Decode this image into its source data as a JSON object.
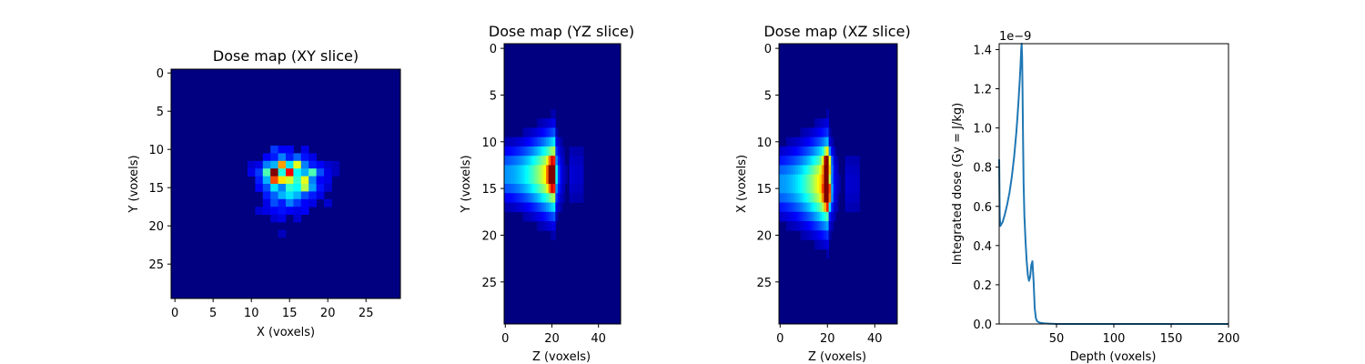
{
  "chart_data": [
    {
      "type": "heatmap",
      "title": "Dose map (XY slice)",
      "xlabel": "X (voxels)",
      "ylabel": "Y (voxels)",
      "xlim": [
        -0.5,
        29.5
      ],
      "ylim": [
        29.5,
        -0.5
      ],
      "x_ticks": [
        0,
        5,
        10,
        15,
        20,
        25
      ],
      "y_ticks": [
        0,
        5,
        10,
        15,
        20,
        25
      ],
      "grid_shape": [
        30,
        30
      ],
      "colormap": "jet",
      "cells": [
        {
          "x": 13,
          "y": 10,
          "v": 0.18
        },
        {
          "x": 14,
          "y": 10,
          "v": 0.12
        },
        {
          "x": 15,
          "y": 10,
          "v": 0.12
        },
        {
          "x": 17,
          "y": 10,
          "v": 0.1
        },
        {
          "x": 12,
          "y": 11,
          "v": 0.12
        },
        {
          "x": 13,
          "y": 11,
          "v": 0.15
        },
        {
          "x": 14,
          "y": 11,
          "v": 0.25
        },
        {
          "x": 15,
          "y": 11,
          "v": 0.15
        },
        {
          "x": 16,
          "y": 11,
          "v": 0.22
        },
        {
          "x": 17,
          "y": 11,
          "v": 0.14
        },
        {
          "x": 18,
          "y": 11,
          "v": 0.1
        },
        {
          "x": 10,
          "y": 12,
          "v": 0.08
        },
        {
          "x": 11,
          "y": 12,
          "v": 0.1
        },
        {
          "x": 12,
          "y": 12,
          "v": 0.25
        },
        {
          "x": 13,
          "y": 12,
          "v": 0.3
        },
        {
          "x": 14,
          "y": 12,
          "v": 0.72
        },
        {
          "x": 15,
          "y": 12,
          "v": 0.35
        },
        {
          "x": 16,
          "y": 12,
          "v": 0.6
        },
        {
          "x": 17,
          "y": 12,
          "v": 0.25
        },
        {
          "x": 18,
          "y": 12,
          "v": 0.15
        },
        {
          "x": 19,
          "y": 12,
          "v": 0.12
        },
        {
          "x": 20,
          "y": 12,
          "v": 0.08
        },
        {
          "x": 21,
          "y": 12,
          "v": 0.06
        },
        {
          "x": 10,
          "y": 13,
          "v": 0.1
        },
        {
          "x": 11,
          "y": 13,
          "v": 0.18
        },
        {
          "x": 12,
          "y": 13,
          "v": 0.45
        },
        {
          "x": 13,
          "y": 13,
          "v": 1.0
        },
        {
          "x": 14,
          "y": 13,
          "v": 0.4
        },
        {
          "x": 15,
          "y": 13,
          "v": 0.88
        },
        {
          "x": 16,
          "y": 13,
          "v": 0.38
        },
        {
          "x": 17,
          "y": 13,
          "v": 0.3
        },
        {
          "x": 18,
          "y": 13,
          "v": 0.45
        },
        {
          "x": 19,
          "y": 13,
          "v": 0.2
        },
        {
          "x": 20,
          "y": 13,
          "v": 0.1
        },
        {
          "x": 21,
          "y": 13,
          "v": 0.06
        },
        {
          "x": 11,
          "y": 14,
          "v": 0.15
        },
        {
          "x": 12,
          "y": 14,
          "v": 0.3
        },
        {
          "x": 13,
          "y": 14,
          "v": 0.8
        },
        {
          "x": 14,
          "y": 14,
          "v": 0.65
        },
        {
          "x": 15,
          "y": 14,
          "v": 0.58
        },
        {
          "x": 16,
          "y": 14,
          "v": 0.42
        },
        {
          "x": 17,
          "y": 14,
          "v": 0.6
        },
        {
          "x": 18,
          "y": 14,
          "v": 0.25
        },
        {
          "x": 19,
          "y": 14,
          "v": 0.12
        },
        {
          "x": 20,
          "y": 14,
          "v": 0.1
        },
        {
          "x": 11,
          "y": 15,
          "v": 0.12
        },
        {
          "x": 12,
          "y": 15,
          "v": 0.2
        },
        {
          "x": 13,
          "y": 15,
          "v": 0.35
        },
        {
          "x": 14,
          "y": 15,
          "v": 0.25
        },
        {
          "x": 15,
          "y": 15,
          "v": 0.42
        },
        {
          "x": 16,
          "y": 15,
          "v": 0.38
        },
        {
          "x": 17,
          "y": 15,
          "v": 0.55
        },
        {
          "x": 18,
          "y": 15,
          "v": 0.28
        },
        {
          "x": 19,
          "y": 15,
          "v": 0.14
        },
        {
          "x": 20,
          "y": 15,
          "v": 0.08
        },
        {
          "x": 12,
          "y": 16,
          "v": 0.15
        },
        {
          "x": 13,
          "y": 16,
          "v": 0.22
        },
        {
          "x": 14,
          "y": 16,
          "v": 0.3
        },
        {
          "x": 15,
          "y": 16,
          "v": 0.35
        },
        {
          "x": 16,
          "y": 16,
          "v": 0.3
        },
        {
          "x": 17,
          "y": 16,
          "v": 0.2
        },
        {
          "x": 18,
          "y": 16,
          "v": 0.15
        },
        {
          "x": 19,
          "y": 16,
          "v": 0.1
        },
        {
          "x": 12,
          "y": 17,
          "v": 0.1
        },
        {
          "x": 13,
          "y": 17,
          "v": 0.2
        },
        {
          "x": 14,
          "y": 17,
          "v": 0.15
        },
        {
          "x": 15,
          "y": 17,
          "v": 0.25
        },
        {
          "x": 16,
          "y": 17,
          "v": 0.18
        },
        {
          "x": 17,
          "y": 17,
          "v": 0.12
        },
        {
          "x": 18,
          "y": 17,
          "v": 0.1
        },
        {
          "x": 20,
          "y": 17,
          "v": 0.08
        },
        {
          "x": 11,
          "y": 18,
          "v": 0.08
        },
        {
          "x": 12,
          "y": 18,
          "v": 0.1
        },
        {
          "x": 13,
          "y": 18,
          "v": 0.12
        },
        {
          "x": 14,
          "y": 18,
          "v": 0.14
        },
        {
          "x": 15,
          "y": 18,
          "v": 0.12
        },
        {
          "x": 16,
          "y": 18,
          "v": 0.1
        },
        {
          "x": 17,
          "y": 18,
          "v": 0.12
        },
        {
          "x": 13,
          "y": 19,
          "v": 0.08
        },
        {
          "x": 14,
          "y": 19,
          "v": 0.1
        },
        {
          "x": 16,
          "y": 19,
          "v": 0.08
        },
        {
          "x": 14,
          "y": 21,
          "v": 0.06
        }
      ]
    },
    {
      "type": "heatmap",
      "title": "Dose map (YZ slice)",
      "xlabel": "Z (voxels)",
      "ylabel": "Y (voxels)",
      "xlim": [
        -0.5,
        49.5
      ],
      "ylim": [
        29.5,
        -0.5
      ],
      "x_ticks": [
        0,
        20,
        40
      ],
      "y_ticks": [
        0,
        5,
        10,
        15,
        20,
        25
      ],
      "colormap": "jet",
      "field": {
        "depth_center": 14.0,
        "depth_spread": 3.5,
        "peak_z": 21,
        "hotspots": [
          {
            "z": 20.5,
            "y": 14.0,
            "v": 1.0
          }
        ]
      }
    },
    {
      "type": "heatmap",
      "title": "Dose map (XZ slice)",
      "xlabel": "Z (voxels)",
      "ylabel": "X (voxels)",
      "xlim": [
        -0.5,
        49.5
      ],
      "ylim": [
        29.5,
        -0.5
      ],
      "x_ticks": [
        0,
        20,
        40
      ],
      "y_ticks": [
        0,
        5,
        10,
        15,
        20,
        25
      ],
      "colormap": "jet",
      "field": {
        "depth_center": 15.0,
        "depth_spread": 4.0,
        "peak_z": 20,
        "hotspots": [
          {
            "z": 20.5,
            "y": 16.0,
            "v": 1.0
          },
          {
            "z": 20.5,
            "y": 13.0,
            "v": 0.8
          }
        ]
      }
    },
    {
      "type": "line",
      "title": "",
      "xlabel": "Depth (voxels)",
      "ylabel": "Integrated dose (Gy = J/kg)",
      "offset_text": "1e−9",
      "xlim": [
        0,
        200
      ],
      "ylim": [
        0.0,
        1.43
      ],
      "x_ticks": [
        50,
        100,
        150,
        200
      ],
      "y_ticks": [
        "0.0",
        "0.2",
        "0.4",
        "0.6",
        "0.8",
        "1.0",
        "1.2",
        "1.4"
      ],
      "grid": false,
      "color": "#1f77b4",
      "series": [
        {
          "x": [
            0,
            0.5,
            1,
            3,
            5,
            7,
            9,
            11,
            13,
            15,
            16,
            17,
            18,
            18.7,
            19.2,
            19.6,
            20,
            20.4,
            20.8,
            21.3,
            22,
            23,
            24,
            25,
            26,
            27,
            28,
            29,
            30,
            31,
            32,
            33,
            34,
            35,
            36,
            38,
            40,
            43,
            46,
            50,
            60,
            200
          ],
          "y": [
            0.84,
            0.55,
            0.5,
            0.52,
            0.56,
            0.61,
            0.67,
            0.75,
            0.85,
            0.98,
            1.06,
            1.15,
            1.25,
            1.33,
            1.4,
            1.43,
            1.36,
            1.18,
            0.95,
            0.72,
            0.55,
            0.42,
            0.32,
            0.25,
            0.22,
            0.24,
            0.3,
            0.32,
            0.22,
            0.08,
            0.03,
            0.015,
            0.01,
            0.008,
            0.006,
            0.004,
            0.003,
            0.002,
            0.001,
            0.0,
            0.0,
            0.0
          ]
        }
      ]
    }
  ]
}
